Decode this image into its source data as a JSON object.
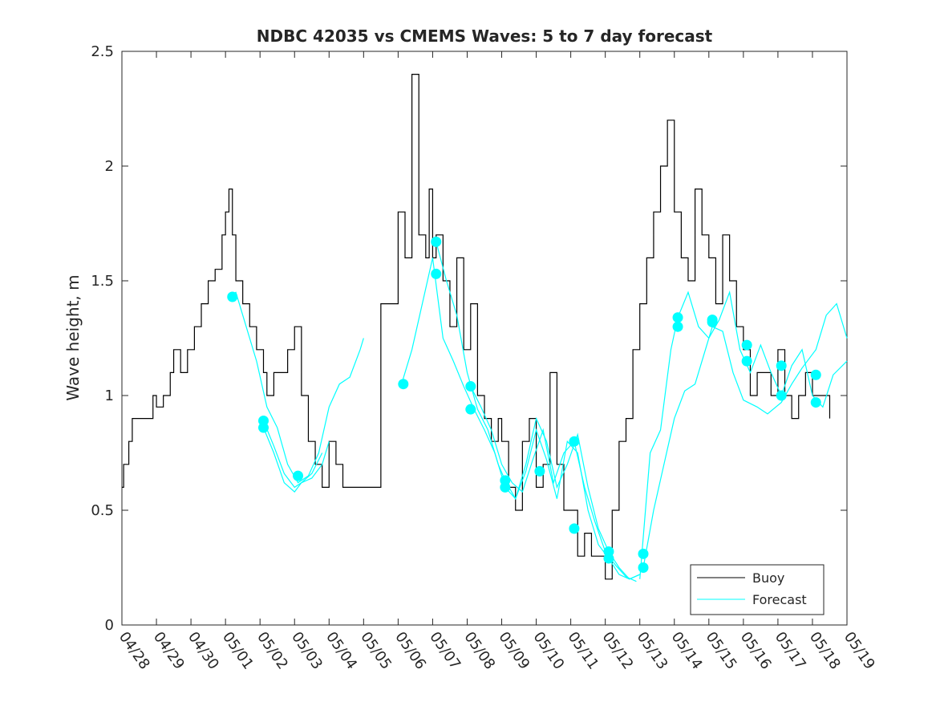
{
  "chart_data": {
    "type": "line",
    "title": "NDBC 42035 vs CMEMS Waves: 5 to 7 day forecast",
    "xlabel": "",
    "ylabel": "Wave height, m",
    "xlim": [
      0,
      21
    ],
    "ylim": [
      0,
      2.5
    ],
    "x_ticks": [
      "04/28",
      "04/29",
      "04/30",
      "05/01",
      "05/02",
      "05/03",
      "05/04",
      "05/05",
      "05/06",
      "05/07",
      "05/08",
      "05/09",
      "05/10",
      "05/11",
      "05/12",
      "05/13",
      "05/14",
      "05/15",
      "05/16",
      "05/17",
      "05/18",
      "05/19"
    ],
    "y_ticks": [
      "0",
      "0.5",
      "1",
      "1.5",
      "2",
      "2.5"
    ],
    "y_tick_values": [
      0,
      0.5,
      1,
      1.5,
      2,
      2.5
    ],
    "grid": false,
    "legend_position": "bottom-right",
    "colors": {
      "buoy": "#000000",
      "forecast": "#00ffff",
      "axis": "#262626"
    },
    "series": [
      {
        "name": "Buoy",
        "x": [
          0,
          0.05,
          0.1,
          0.2,
          0.3,
          0.4,
          0.7,
          0.9,
          1.0,
          1.2,
          1.4,
          1.5,
          1.7,
          1.9,
          2.1,
          2.3,
          2.5,
          2.7,
          2.9,
          3.0,
          3.1,
          3.2,
          3.3,
          3.5,
          3.7,
          3.9,
          4.1,
          4.2,
          4.4,
          4.6,
          4.8,
          5.0,
          5.2,
          5.4,
          5.6,
          5.8,
          6.0,
          6.2,
          6.4,
          6.6,
          6.8,
          7.0,
          7.5,
          8.0,
          8.2,
          8.4,
          8.6,
          8.8,
          8.9,
          9.0,
          9.1,
          9.3,
          9.5,
          9.7,
          9.9,
          10.1,
          10.3,
          10.5,
          10.7,
          10.9,
          11.0,
          11.2,
          11.4,
          11.6,
          11.8,
          12.0,
          12.2,
          12.4,
          12.6,
          12.8,
          13.0,
          13.2,
          13.4,
          13.6,
          13.8,
          14.0,
          14.2,
          14.4,
          14.6,
          14.8,
          15.0,
          15.2,
          15.4,
          15.6,
          15.8,
          16.0,
          16.2,
          16.4,
          16.6,
          16.8,
          17.0,
          17.2,
          17.4,
          17.6,
          17.8,
          18.0,
          18.2,
          18.4,
          18.6,
          18.8,
          19.0,
          19.2,
          19.4,
          19.6,
          19.8,
          20.0,
          20.2,
          20.5
        ],
        "values": [
          0.6,
          0.7,
          0.7,
          0.8,
          0.9,
          0.9,
          0.9,
          1.0,
          0.95,
          1.0,
          1.1,
          1.2,
          1.1,
          1.2,
          1.3,
          1.4,
          1.5,
          1.55,
          1.7,
          1.8,
          1.9,
          1.7,
          1.5,
          1.4,
          1.3,
          1.2,
          1.1,
          1.0,
          1.1,
          1.1,
          1.2,
          1.3,
          1.0,
          0.8,
          0.7,
          0.6,
          0.8,
          0.7,
          0.6,
          0.6,
          0.6,
          0.6,
          1.4,
          1.8,
          1.6,
          2.4,
          1.7,
          1.6,
          1.9,
          1.6,
          1.7,
          1.5,
          1.3,
          1.6,
          1.2,
          1.4,
          1.0,
          0.9,
          0.8,
          0.9,
          0.8,
          0.6,
          0.5,
          0.8,
          0.9,
          0.6,
          0.7,
          1.1,
          0.7,
          0.5,
          0.5,
          0.3,
          0.4,
          0.3,
          0.3,
          0.2,
          0.5,
          0.8,
          0.9,
          1.2,
          1.4,
          1.6,
          1.8,
          2.0,
          2.2,
          1.8,
          1.6,
          1.5,
          1.9,
          1.7,
          1.6,
          1.4,
          1.7,
          1.5,
          1.3,
          1.2,
          1.0,
          1.1,
          1.1,
          1.0,
          1.2,
          1.0,
          0.9,
          1.0,
          1.1,
          1.0,
          1.0,
          0.9
        ]
      },
      {
        "name": "Forecast",
        "x": [
          3.1,
          3.3,
          3.6,
          3.9,
          4.2,
          4.5,
          4.8,
          5.1,
          5.4,
          5.7,
          6.0,
          6.3,
          6.6,
          6.9,
          7.0
        ],
        "values": [
          1.43,
          1.45,
          1.3,
          1.15,
          0.95,
          0.86,
          0.7,
          0.62,
          0.65,
          0.75,
          0.95,
          1.05,
          1.08,
          1.2,
          1.25
        ]
      },
      {
        "name": "",
        "x": [
          4.1,
          4.4,
          4.7,
          5.0,
          5.2,
          5.5,
          5.8,
          6.0
        ],
        "values": [
          0.89,
          0.78,
          0.66,
          0.6,
          0.62,
          0.64,
          0.7,
          0.8
        ]
      },
      {
        "name": "",
        "x": [
          8.1,
          8.4,
          8.7,
          9.0,
          9.3,
          9.6,
          9.9,
          10.2,
          10.5,
          10.8,
          11.1,
          11.4,
          11.7,
          12.0,
          12.3,
          12.6,
          12.9,
          13.2,
          13.5,
          13.8,
          14.1,
          14.4,
          14.7,
          15.0
        ],
        "values": [
          1.05,
          1.2,
          1.4,
          1.6,
          1.25,
          1.15,
          1.04,
          0.94,
          0.85,
          0.75,
          0.6,
          0.55,
          0.7,
          0.9,
          0.8,
          0.6,
          0.7,
          0.83,
          0.6,
          0.42,
          0.32,
          0.25,
          0.2,
          0.22
        ]
      },
      {
        "name": "",
        "x": [
          9.1,
          9.4,
          9.7,
          10.0,
          10.3,
          10.6,
          10.9,
          11.1,
          11.4,
          11.7,
          12.0,
          12.3,
          12.6,
          12.9,
          13.2,
          13.5,
          13.8,
          14.1,
          14.4,
          14.7,
          15.0
        ],
        "values": [
          1.67,
          1.5,
          1.35,
          1.1,
          0.94,
          0.85,
          0.7,
          0.63,
          0.55,
          0.67,
          0.85,
          0.72,
          0.55,
          0.8,
          0.75,
          0.5,
          0.35,
          0.29,
          0.22,
          0.2,
          0.22
        ]
      },
      {
        "name": "",
        "x": [
          15.0,
          15.3,
          15.6,
          15.9,
          16.1,
          16.4,
          16.7,
          17.0,
          17.3,
          17.6,
          17.9,
          18.2,
          18.5,
          18.8,
          19.1,
          19.4,
          19.7,
          20.0,
          20.3,
          20.6,
          21.0
        ],
        "values": [
          0.2,
          0.75,
          0.85,
          1.2,
          1.34,
          1.45,
          1.3,
          1.25,
          1.33,
          1.45,
          1.2,
          1.1,
          1.22,
          1.1,
          1.0,
          1.13,
          1.2,
          1.0,
          0.95,
          1.09,
          1.15
        ]
      },
      {
        "name": "",
        "x": [
          15.1,
          15.4,
          15.7,
          16.0,
          16.3,
          16.6,
          17.1,
          17.4,
          17.7,
          18.0,
          18.4,
          18.7,
          19.1,
          19.4,
          19.7,
          20.1,
          20.4,
          20.7,
          21.0
        ],
        "values": [
          0.25,
          0.5,
          0.7,
          0.9,
          1.02,
          1.05,
          1.3,
          1.28,
          1.1,
          0.98,
          0.95,
          0.92,
          0.97,
          1.05,
          1.12,
          1.2,
          1.35,
          1.4,
          1.25
        ]
      },
      {
        "name": "",
        "x": [
          4.1,
          4.4,
          4.7,
          5.0,
          5.2,
          5.5,
          5.8
        ],
        "values": [
          0.86,
          0.75,
          0.62,
          0.58,
          0.62,
          0.66,
          0.75
        ]
      },
      {
        "name": "",
        "x": [
          10.1,
          10.4,
          10.7,
          11.0,
          11.3,
          11.6,
          11.9,
          12.2,
          12.5,
          12.8,
          13.1,
          13.4,
          13.7,
          14.0,
          14.3,
          14.6,
          14.9
        ],
        "values": [
          1.04,
          0.95,
          0.85,
          0.7,
          0.62,
          0.58,
          0.72,
          0.85,
          0.62,
          0.75,
          0.8,
          0.6,
          0.45,
          0.32,
          0.26,
          0.21,
          0.19
        ]
      }
    ],
    "markers": {
      "x": [
        3.2,
        4.1,
        4.1,
        5.1,
        8.15,
        9.1,
        9.1,
        10.1,
        10.1,
        11.1,
        11.1,
        12.1,
        13.1,
        13.1,
        14.1,
        14.1,
        15.1,
        15.1,
        16.1,
        16.1,
        17.1,
        17.1,
        18.1,
        18.1,
        19.1,
        19.1,
        20.1,
        20.1
      ],
      "values": [
        1.43,
        0.89,
        0.86,
        0.65,
        1.05,
        1.67,
        1.53,
        1.04,
        0.94,
        0.63,
        0.6,
        0.67,
        0.8,
        0.42,
        0.32,
        0.29,
        0.31,
        0.25,
        1.34,
        1.3,
        1.33,
        1.32,
        1.22,
        1.15,
        1.13,
        1.0,
        1.09,
        0.97
      ]
    },
    "legend": [
      "Buoy",
      "Forecast"
    ]
  }
}
